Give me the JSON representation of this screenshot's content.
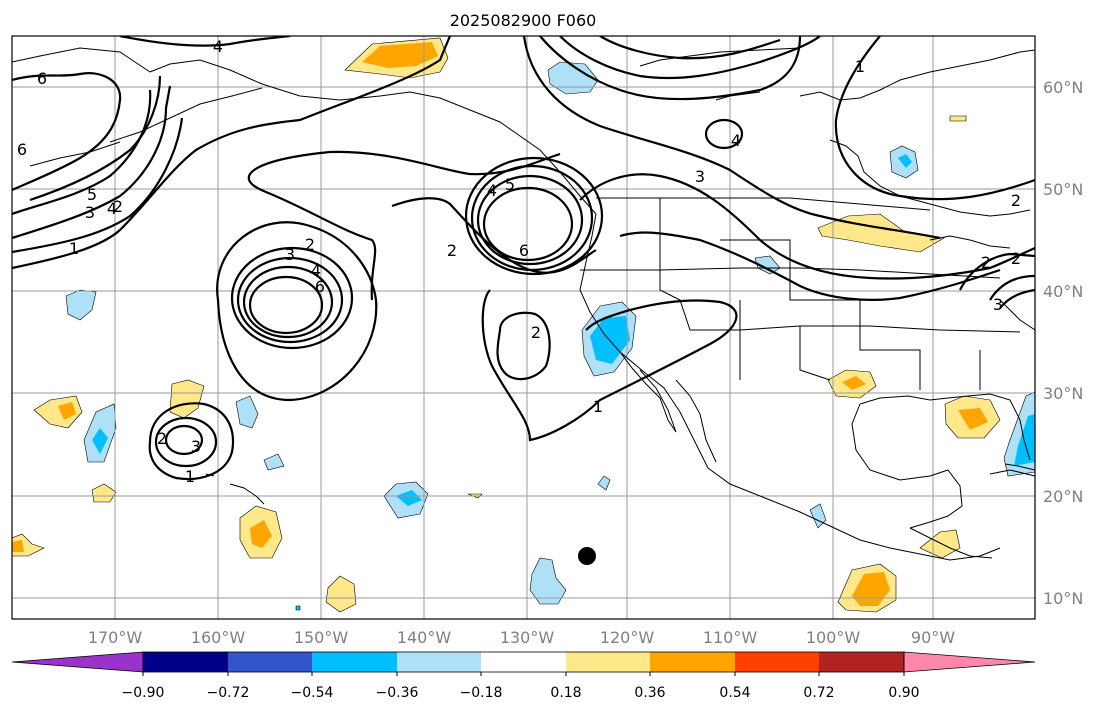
{
  "title": "2025082900 F060",
  "lon_labels": [
    "170°W",
    "160°W",
    "150°W",
    "140°W",
    "130°W",
    "120°W",
    "110°W",
    "100°W",
    "90°W"
  ],
  "lat_labels": [
    "60°N",
    "50°N",
    "40°N",
    "30°N",
    "20°N",
    "10°N"
  ],
  "colorbar": {
    "ticks": [
      "−0.90",
      "−0.72",
      "−0.54",
      "−0.36",
      "−0.18",
      "0.18",
      "0.36",
      "0.54",
      "0.72",
      "0.90"
    ],
    "colors": [
      "#9933cc",
      "#000088",
      "#3355cc",
      "#00bfff",
      "#aee0f8",
      "#ffffff",
      "#ffe88a",
      "#ffa500",
      "#ff4000",
      "#b22222",
      "#ff88aa"
    ]
  },
  "contour_labels": [
    "4",
    "6",
    "6",
    "5",
    "4",
    "1",
    "3",
    "2",
    "1",
    "2",
    "3",
    "4",
    "6",
    "2",
    "4",
    "5",
    "6",
    "2",
    "3",
    "2",
    "1",
    "1",
    "4",
    "3",
    "2",
    "2",
    "2",
    "3"
  ],
  "marker": "filled-circle"
}
